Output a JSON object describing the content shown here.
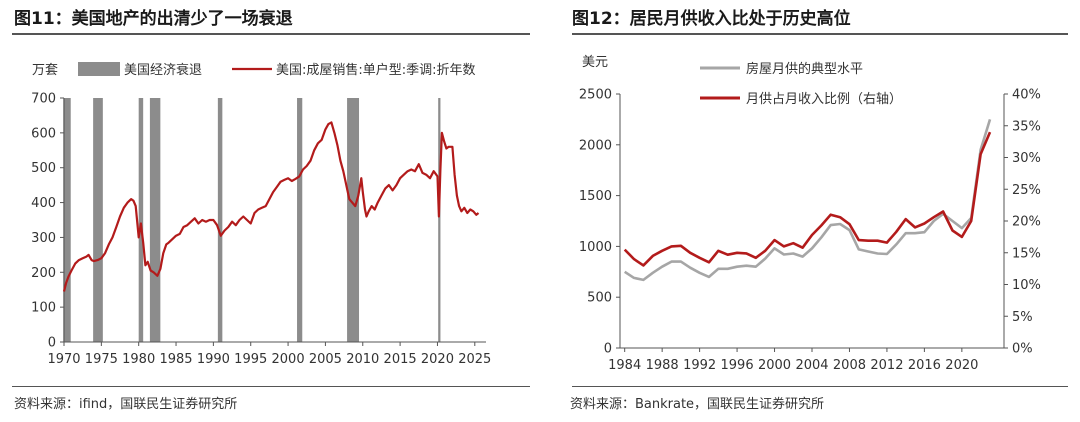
{
  "chart_data": [
    {
      "type": "line",
      "figure_title": "图11：美国地产的出清少了一场衰退",
      "unit_label": "万套",
      "legend": {
        "recession": "美国经济衰退",
        "series": "美国:成屋销售:单户型:季调:折年数"
      },
      "colors": {
        "recession": "#8c8c8c",
        "line": "#b31b1b"
      },
      "x_ticks": [
        1970,
        1975,
        1980,
        1985,
        1990,
        1995,
        2000,
        2005,
        2010,
        2015,
        2020,
        2025
      ],
      "xlim": [
        1970,
        2026.5
      ],
      "y_ticks": [
        0,
        100,
        200,
        300,
        400,
        500,
        600,
        700
      ],
      "ylim": [
        0,
        700
      ],
      "recessions": [
        [
          1969.9,
          1970.9
        ],
        [
          1973.9,
          1975.2
        ],
        [
          1980.0,
          1980.6
        ],
        [
          1981.5,
          1982.9
        ],
        [
          1990.6,
          1991.2
        ],
        [
          2001.2,
          2001.9
        ],
        [
          2007.9,
          2009.5
        ],
        [
          2020.1,
          2020.4
        ]
      ],
      "series": [
        {
          "name": "美国:成屋销售:单户型:季调:折年数",
          "x": [
            1970.0,
            1970.3,
            1970.6,
            1971.0,
            1971.5,
            1972.0,
            1972.5,
            1973.0,
            1973.3,
            1973.7,
            1974.0,
            1974.5,
            1975.0,
            1975.5,
            1976.0,
            1976.5,
            1977.0,
            1977.5,
            1978.0,
            1978.5,
            1979.0,
            1979.3,
            1979.6,
            1980.0,
            1980.3,
            1980.6,
            1980.9,
            1981.2,
            1981.6,
            1982.0,
            1982.5,
            1982.9,
            1983.3,
            1983.7,
            1984.0,
            1984.5,
            1985.0,
            1985.5,
            1986.0,
            1986.5,
            1987.0,
            1987.5,
            1988.0,
            1988.5,
            1989.0,
            1989.5,
            1990.0,
            1990.5,
            1991.0,
            1991.5,
            1992.0,
            1992.5,
            1993.0,
            1993.5,
            1994.0,
            1994.5,
            1995.0,
            1995.5,
            1996.0,
            1996.5,
            1997.0,
            1997.5,
            1998.0,
            1998.5,
            1999.0,
            1999.5,
            2000.0,
            2000.5,
            2001.0,
            2001.5,
            2002.0,
            2002.5,
            2003.0,
            2003.5,
            2004.0,
            2004.5,
            2005.0,
            2005.4,
            2005.8,
            2006.2,
            2006.6,
            2007.0,
            2007.4,
            2007.8,
            2008.2,
            2008.6,
            2009.0,
            2009.4,
            2009.8,
            2010.0,
            2010.3,
            2010.5,
            2010.8,
            2011.2,
            2011.6,
            2012.0,
            2012.5,
            2013.0,
            2013.5,
            2014.0,
            2014.5,
            2015.0,
            2015.5,
            2016.0,
            2016.5,
            2017.0,
            2017.5,
            2018.0,
            2018.5,
            2019.0,
            2019.5,
            2020.0,
            2020.2,
            2020.4,
            2020.6,
            2020.9,
            2021.2,
            2021.5,
            2021.8,
            2022.0,
            2022.3,
            2022.6,
            2022.9,
            2023.2,
            2023.6,
            2024.0,
            2024.4,
            2024.8,
            2025.2,
            2025.5
          ],
          "values": [
            145,
            170,
            188,
            205,
            225,
            235,
            240,
            245,
            250,
            235,
            232,
            235,
            240,
            255,
            280,
            300,
            330,
            360,
            385,
            400,
            410,
            405,
            390,
            300,
            340,
            285,
            220,
            230,
            205,
            200,
            190,
            210,
            255,
            280,
            285,
            295,
            305,
            310,
            330,
            335,
            345,
            355,
            340,
            350,
            345,
            350,
            350,
            335,
            305,
            320,
            330,
            345,
            335,
            350,
            360,
            350,
            340,
            370,
            380,
            385,
            390,
            410,
            430,
            445,
            460,
            465,
            470,
            462,
            468,
            475,
            495,
            505,
            520,
            550,
            570,
            580,
            610,
            625,
            630,
            600,
            565,
            520,
            490,
            450,
            410,
            400,
            390,
            420,
            470,
            430,
            380,
            360,
            375,
            390,
            380,
            400,
            420,
            440,
            450,
            435,
            450,
            470,
            480,
            490,
            495,
            490,
            510,
            485,
            480,
            470,
            490,
            475,
            360,
            495,
            600,
            575,
            555,
            560,
            560,
            560,
            480,
            420,
            390,
            375,
            385,
            370,
            380,
            375,
            365,
            370
          ]
        }
      ]
    },
    {
      "type": "line",
      "figure_title": "图12：居民月供收入比处于历史高位",
      "unit_label": "美元",
      "legend": [
        "房屋月供的典型水平",
        "月供占月收入比例（右轴）"
      ],
      "colors": {
        "payment": "#a6a6a6",
        "ratio": "#b31b1b"
      },
      "x_ticks": [
        1984,
        1988,
        1992,
        1996,
        2000,
        2004,
        2008,
        2012,
        2016,
        2020
      ],
      "xlim": [
        1983.5,
        2024.5
      ],
      "y_left_ticks": [
        0,
        500,
        1000,
        1500,
        2000,
        2500
      ],
      "ylim_left": [
        0,
        2500
      ],
      "y_right_ticks": [
        "0%",
        "5%",
        "10%",
        "15%",
        "20%",
        "25%",
        "30%",
        "35%",
        "40%"
      ],
      "ylim_right": [
        0,
        40
      ],
      "series": [
        {
          "name": "房屋月供的典型水平",
          "axis": "left",
          "x": [
            1984,
            1985,
            1986,
            1987,
            1988,
            1989,
            1990,
            1991,
            1992,
            1993,
            1994,
            1995,
            1996,
            1997,
            1998,
            1999,
            2000,
            2001,
            2002,
            2003,
            2004,
            2005,
            2006,
            2007,
            2008,
            2009,
            2010,
            2011,
            2012,
            2013,
            2014,
            2015,
            2016,
            2017,
            2018,
            2019,
            2020,
            2021,
            2022,
            2023
          ],
          "values": [
            750,
            690,
            670,
            740,
            800,
            850,
            850,
            790,
            740,
            700,
            780,
            780,
            800,
            810,
            800,
            880,
            980,
            920,
            930,
            900,
            980,
            1090,
            1210,
            1220,
            1160,
            970,
            950,
            930,
            925,
            1020,
            1130,
            1130,
            1140,
            1250,
            1320,
            1250,
            1180,
            1280,
            1950,
            2250
          ]
        },
        {
          "name": "月供占月收入比例（右轴）",
          "axis": "right",
          "x": [
            1984,
            1985,
            1986,
            1987,
            1988,
            1989,
            1990,
            1991,
            1992,
            1993,
            1994,
            1995,
            1996,
            1997,
            1998,
            1999,
            2000,
            2001,
            2002,
            2003,
            2004,
            2005,
            2006,
            2007,
            2008,
            2009,
            2010,
            2011,
            2012,
            2013,
            2014,
            2015,
            2016,
            2017,
            2018,
            2019,
            2020,
            2021,
            2022,
            2023
          ],
          "values": [
            15.5,
            14.0,
            13.0,
            14.5,
            15.3,
            16.0,
            16.1,
            15.0,
            14.2,
            13.5,
            15.3,
            14.7,
            15.0,
            14.9,
            14.2,
            15.3,
            17.0,
            16.0,
            16.5,
            15.8,
            17.8,
            19.3,
            21.0,
            20.6,
            19.5,
            17.0,
            16.9,
            16.9,
            16.6,
            18.3,
            20.3,
            19.0,
            19.6,
            20.6,
            21.5,
            18.5,
            17.5,
            20.0,
            30.5,
            34.0
          ]
        }
      ]
    }
  ],
  "sources": [
    "资料来源：ifind，国联民生证券研究所",
    "资料来源：Bankrate，国联民生证券研究所"
  ]
}
